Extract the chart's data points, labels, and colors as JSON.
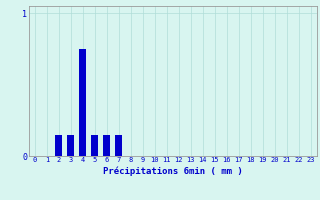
{
  "hours": [
    0,
    1,
    2,
    3,
    4,
    5,
    6,
    7,
    8,
    9,
    10,
    11,
    12,
    13,
    14,
    15,
    16,
    17,
    18,
    19,
    20,
    21,
    22,
    23
  ],
  "values": [
    0,
    0,
    0.15,
    0.15,
    0.75,
    0.15,
    0.15,
    0.15,
    0,
    0,
    0,
    0,
    0,
    0,
    0,
    0,
    0,
    0,
    0,
    0,
    0,
    0,
    0,
    0
  ],
  "bar_color": "#0000cc",
  "bg_color": "#d8f5f0",
  "grid_color": "#b0ddd8",
  "axis_color": "#999999",
  "text_color": "#0000cc",
  "ylim_max": 1.05,
  "yticks": [
    0,
    1
  ],
  "xlabel": "Précipitations 6min ( mm )",
  "tick_fontsize": 5,
  "xlabel_fontsize": 6.5,
  "bar_width": 0.6
}
